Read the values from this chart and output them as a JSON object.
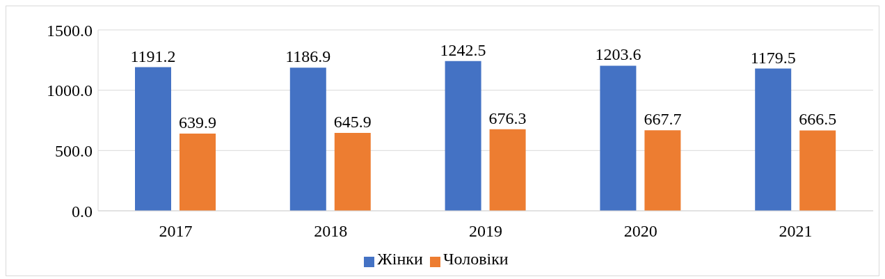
{
  "chart_data": {
    "type": "bar",
    "categories": [
      "2017",
      "2018",
      "2019",
      "2020",
      "2021"
    ],
    "series": [
      {
        "name": "Жінки",
        "color": "#4472c4",
        "values": [
          1191.2,
          1186.9,
          1242.5,
          1203.6,
          1179.5
        ]
      },
      {
        "name": "Чоловіки",
        "color": "#ed7d31",
        "values": [
          639.9,
          645.9,
          676.3,
          667.7,
          666.5
        ]
      }
    ],
    "ylim": [
      0,
      1500
    ],
    "yticks": [
      {
        "value": 0,
        "label": "0.0"
      },
      {
        "value": 500,
        "label": "500.0"
      },
      {
        "value": 1000,
        "label": "1000.0"
      },
      {
        "value": 1500,
        "label": "1500.0"
      }
    ],
    "grid": "y",
    "legend": "bottom",
    "data_labels": true
  }
}
